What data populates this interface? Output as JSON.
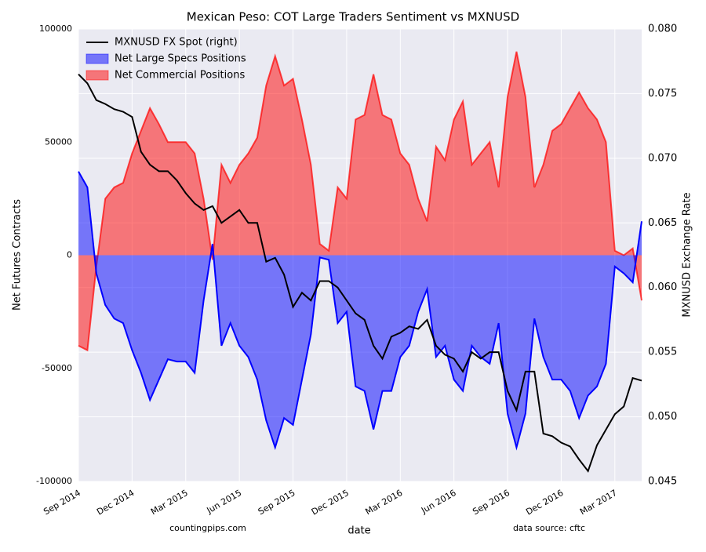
{
  "chart_data": {
    "type": "area",
    "title": "Mexican Peso: COT Large Traders Sentiment vs MXNUSD",
    "xlabel": "date",
    "ylabel": "Net Futures Contracts",
    "y2label": "MXNUSD Exchange Rate",
    "annotations": [
      "countingpips.com",
      "data source: cftc"
    ],
    "categories": [
      "Sep 2014",
      null,
      null,
      null,
      null,
      null,
      "Dec 2014",
      null,
      null,
      null,
      null,
      null,
      "Mar 2015",
      null,
      null,
      null,
      null,
      null,
      "Jun 2015",
      null,
      null,
      null,
      null,
      null,
      "Sep 2015",
      null,
      null,
      null,
      null,
      null,
      "Dec 2015",
      null,
      null,
      null,
      null,
      null,
      "Mar 2016",
      null,
      null,
      null,
      null,
      null,
      "Jun 2016",
      null,
      null,
      null,
      null,
      null,
      "Sep 2016",
      null,
      null,
      null,
      null,
      null,
      "Dec 2016",
      null,
      null,
      null,
      null,
      null,
      "Mar 2017",
      null,
      null,
      null
    ],
    "series": [
      {
        "name": "MXNUSD FX Spot (right)",
        "type": "line",
        "axis": "y2",
        "color": "#000000",
        "values": [
          0.0765,
          0.0758,
          0.0745,
          0.0742,
          0.0738,
          0.0736,
          0.0732,
          0.0705,
          0.0695,
          0.069,
          0.069,
          0.0683,
          0.0673,
          0.0665,
          0.066,
          0.0663,
          0.065,
          0.0655,
          0.066,
          0.065,
          0.065,
          0.062,
          0.0623,
          0.061,
          0.0585,
          0.0596,
          0.059,
          0.0605,
          0.0605,
          0.06,
          0.059,
          0.058,
          0.0575,
          0.0555,
          0.0545,
          0.0562,
          0.0565,
          0.057,
          0.0568,
          0.0575,
          0.0555,
          0.0548,
          0.0545,
          0.0535,
          0.055,
          0.0545,
          0.055,
          0.055,
          0.052,
          0.0505,
          0.0535,
          0.0535,
          0.0487,
          0.0485,
          0.048,
          0.0477,
          0.0467,
          0.0458,
          0.0478,
          0.049,
          0.0502,
          0.0508,
          0.053,
          0.0528
        ]
      },
      {
        "name": "Net Large Specs Positions",
        "type": "area",
        "color": "#0000ff",
        "values": [
          37000,
          30000,
          -8000,
          -22000,
          -28000,
          -30000,
          -42000,
          -52000,
          -64000,
          -55000,
          -46000,
          -47000,
          -47000,
          -52000,
          -20000,
          5000,
          -40000,
          -30000,
          -40000,
          -45000,
          -55000,
          -73000,
          -85000,
          -72000,
          -75000,
          -55000,
          -35000,
          -1000,
          -2000,
          -30000,
          -25000,
          -58000,
          -60000,
          -77000,
          -60000,
          -60000,
          -45000,
          -40000,
          -25000,
          -15000,
          -45000,
          -40000,
          -55000,
          -60000,
          -40000,
          -45000,
          -48000,
          -30000,
          -70000,
          -85000,
          -70000,
          -28000,
          -45000,
          -55000,
          -55000,
          -60000,
          -72000,
          -62000,
          -58000,
          -48000,
          -5000,
          -8000,
          -12000,
          15000
        ]
      },
      {
        "name": "Net Commercial Positions",
        "type": "area",
        "color": "#ff0000",
        "values": [
          -40000,
          -42000,
          -5000,
          25000,
          30000,
          32000,
          45000,
          55000,
          65000,
          58000,
          50000,
          50000,
          50000,
          45000,
          25000,
          -2000,
          40000,
          32000,
          40000,
          45000,
          52000,
          75000,
          88000,
          75000,
          78000,
          60000,
          40000,
          5000,
          2000,
          30000,
          25000,
          60000,
          62000,
          80000,
          62000,
          60000,
          45000,
          40000,
          25000,
          15000,
          48000,
          42000,
          60000,
          68000,
          40000,
          45000,
          50000,
          30000,
          70000,
          90000,
          70000,
          30000,
          40000,
          55000,
          58000,
          65000,
          72000,
          65000,
          60000,
          50000,
          2000,
          0,
          3000,
          -20000
        ]
      }
    ],
    "ylim": [
      -100000,
      100000
    ],
    "yticks": [
      -100000,
      -50000,
      0,
      50000,
      100000
    ],
    "y2lim": [
      0.045,
      0.08
    ],
    "y2ticks": [
      0.045,
      {
        "value": 0.05,
        "label": "0.050"
      },
      0.055,
      {
        "value": 0.06,
        "label": "0.060"
      },
      0.065,
      {
        "value": 0.07,
        "label": "0.070"
      },
      0.075,
      {
        "value": 0.08,
        "label": "0.080"
      }
    ],
    "grid": true,
    "legend": "upper left"
  }
}
